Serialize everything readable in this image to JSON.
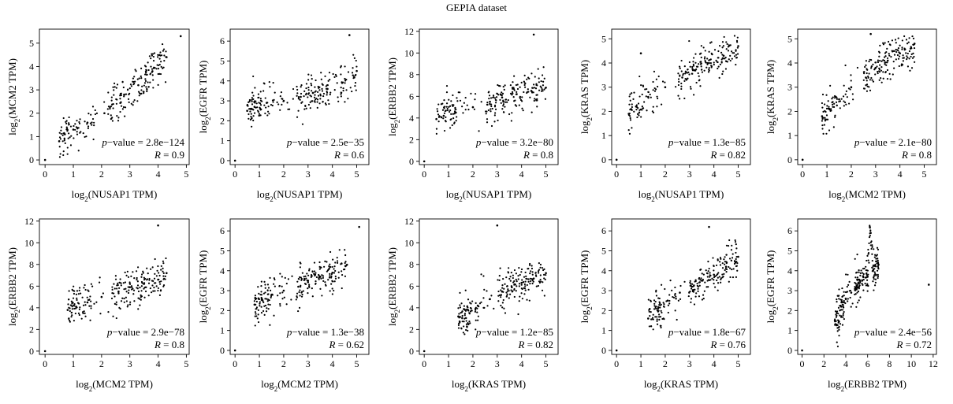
{
  "figure": {
    "title": "GEPIA dataset"
  },
  "chart_data": [
    {
      "type": "scatter",
      "x_var": "NUSAP1",
      "y_var": "MCM2",
      "xlabel": "log2(NUSAP1 TPM)",
      "ylabel": "log2(MCM2 TPM)",
      "xlim": [
        -0.2,
        5.1
      ],
      "ylim": [
        -0.2,
        5.6
      ],
      "xticks": [
        0,
        1,
        2,
        3,
        4,
        5
      ],
      "yticks": [
        0,
        1,
        2,
        3,
        4,
        5
      ],
      "p_value": "2.8e−124",
      "r": "0.9",
      "points": [
        [
          0.0,
          0.0
        ],
        [
          0.5,
          0.8
        ],
        [
          0.7,
          1.1
        ],
        [
          1.0,
          1.3
        ],
        [
          1.5,
          1.6
        ],
        [
          2.1,
          2.0
        ],
        [
          2.8,
          2.8
        ],
        [
          3.3,
          3.2
        ],
        [
          3.8,
          3.8
        ],
        [
          4.3,
          4.4
        ],
        [
          4.8,
          5.3
        ]
      ]
    },
    {
      "type": "scatter",
      "x_var": "NUSAP1",
      "y_var": "EGFR",
      "xlabel": "log2(NUSAP1 TPM)",
      "ylabel": "log2(EGFR TPM)",
      "xlim": [
        -0.2,
        5.5
      ],
      "ylim": [
        -0.2,
        6.6
      ],
      "xticks": [
        0,
        1,
        2,
        3,
        4,
        5
      ],
      "yticks": [
        0,
        1,
        2,
        3,
        4,
        5,
        6
      ],
      "p_value": "2.5e−35",
      "r": "0.6",
      "points": [
        [
          0.0,
          0.0
        ],
        [
          0.5,
          2.5
        ],
        [
          0.8,
          2.7
        ],
        [
          1.3,
          2.9
        ],
        [
          2.0,
          3.0
        ],
        [
          2.7,
          3.2
        ],
        [
          3.2,
          3.4
        ],
        [
          3.8,
          3.6
        ],
        [
          4.4,
          3.9
        ],
        [
          5.0,
          4.5
        ],
        [
          4.7,
          6.3
        ]
      ]
    },
    {
      "type": "scatter",
      "x_var": "NUSAP1",
      "y_var": "ERBB2",
      "xlabel": "log2(NUSAP1 TPM)",
      "ylabel": "log2(ERBB2 TPM)",
      "xlim": [
        -0.2,
        5.5
      ],
      "ylim": [
        -0.3,
        12.2
      ],
      "xticks": [
        0,
        1,
        2,
        3,
        4,
        5
      ],
      "yticks": [
        0,
        2,
        4,
        6,
        8,
        10,
        12
      ],
      "p_value": "3.2e−80",
      "r": "0.8",
      "points": [
        [
          0.0,
          0.0
        ],
        [
          0.5,
          3.9
        ],
        [
          0.8,
          4.2
        ],
        [
          1.3,
          4.5
        ],
        [
          2.0,
          5.0
        ],
        [
          2.7,
          5.5
        ],
        [
          3.2,
          5.9
        ],
        [
          3.8,
          6.2
        ],
        [
          4.4,
          6.5
        ],
        [
          5.0,
          6.8
        ],
        [
          4.5,
          11.7
        ]
      ]
    },
    {
      "type": "scatter",
      "x_var": "NUSAP1",
      "y_var": "KRAS",
      "xlabel": "log2(NUSAP1 TPM)",
      "ylabel": "log2(KRAS TPM)",
      "xlim": [
        -0.2,
        5.5
      ],
      "ylim": [
        -0.2,
        5.4
      ],
      "xticks": [
        0,
        1,
        2,
        3,
        4,
        5
      ],
      "yticks": [
        0,
        1,
        2,
        3,
        4,
        5
      ],
      "p_value": "1.3e−85",
      "r": "0.82",
      "points": [
        [
          0.0,
          0.0
        ],
        [
          0.5,
          1.9
        ],
        [
          0.8,
          2.2
        ],
        [
          1.3,
          2.6
        ],
        [
          2.0,
          3.0
        ],
        [
          2.7,
          3.4
        ],
        [
          3.2,
          3.7
        ],
        [
          3.8,
          4.0
        ],
        [
          4.4,
          4.3
        ],
        [
          5.0,
          4.7
        ],
        [
          1.0,
          4.4
        ]
      ]
    },
    {
      "type": "scatter",
      "x_var": "MCM2",
      "y_var": "KRAS",
      "xlabel": "log2(MCM2 TPM)",
      "ylabel": "log2(KRAS TPM)",
      "xlim": [
        -0.2,
        5.5
      ],
      "ylim": [
        -0.2,
        5.4
      ],
      "xticks": [
        0,
        1,
        2,
        3,
        4,
        5
      ],
      "yticks": [
        0,
        1,
        2,
        3,
        4,
        5
      ],
      "p_value": "2.1e−80",
      "r": "0.8",
      "points": [
        [
          0.0,
          0.0
        ],
        [
          0.8,
          1.8
        ],
        [
          1.1,
          2.1
        ],
        [
          1.5,
          2.5
        ],
        [
          2.0,
          3.0
        ],
        [
          2.6,
          3.4
        ],
        [
          3.0,
          3.8
        ],
        [
          3.5,
          4.1
        ],
        [
          4.0,
          4.4
        ],
        [
          4.6,
          4.8
        ],
        [
          2.8,
          5.2
        ]
      ]
    },
    {
      "type": "scatter",
      "x_var": "MCM2",
      "y_var": "ERBB2",
      "xlabel": "log2(MCM2 TPM)",
      "ylabel": "log2(ERBB2 TPM)",
      "xlim": [
        -0.2,
        5.1
      ],
      "ylim": [
        -0.3,
        12.2
      ],
      "xticks": [
        0,
        1,
        2,
        3,
        4,
        5
      ],
      "yticks": [
        0,
        2,
        4,
        6,
        8,
        10,
        12
      ],
      "p_value": "2.9e−78",
      "r": "0.8",
      "points": [
        [
          0.0,
          0.0
        ],
        [
          0.8,
          3.8
        ],
        [
          1.1,
          4.1
        ],
        [
          1.5,
          4.5
        ],
        [
          2.0,
          5.0
        ],
        [
          2.6,
          5.5
        ],
        [
          3.0,
          5.9
        ],
        [
          3.5,
          6.2
        ],
        [
          4.0,
          6.6
        ],
        [
          4.3,
          7.2
        ],
        [
          4.0,
          11.6
        ]
      ]
    },
    {
      "type": "scatter",
      "x_var": "MCM2",
      "y_var": "EGFR",
      "xlabel": "log2(MCM2 TPM)",
      "ylabel": "log2(EGFR TPM)",
      "xlim": [
        -0.2,
        5.5
      ],
      "ylim": [
        -0.2,
        6.6
      ],
      "xticks": [
        0,
        1,
        2,
        3,
        4,
        5
      ],
      "yticks": [
        0,
        1,
        2,
        3,
        4,
        5,
        6
      ],
      "p_value": "1.3e−38",
      "r": "0.62",
      "points": [
        [
          0.0,
          0.0
        ],
        [
          0.8,
          2.3
        ],
        [
          1.1,
          2.6
        ],
        [
          1.5,
          2.8
        ],
        [
          2.0,
          3.0
        ],
        [
          2.6,
          3.2
        ],
        [
          3.0,
          3.5
        ],
        [
          3.5,
          3.7
        ],
        [
          4.0,
          3.9
        ],
        [
          4.6,
          4.3
        ],
        [
          5.1,
          6.2
        ]
      ]
    },
    {
      "type": "scatter",
      "x_var": "KRAS",
      "y_var": "ERBB2",
      "xlabel": "log2(KRAS TPM)",
      "ylabel": "log2(ERBB2 TPM)",
      "xlim": [
        -0.2,
        5.5
      ],
      "ylim": [
        -0.3,
        12.2
      ],
      "xticks": [
        0,
        1,
        2,
        3,
        4,
        5
      ],
      "yticks": [
        0,
        2,
        4,
        6,
        8,
        10,
        12
      ],
      "p_value": "1.2e−85",
      "r": "0.82",
      "points": [
        [
          0.0,
          0.0
        ],
        [
          1.4,
          3.2
        ],
        [
          1.8,
          3.8
        ],
        [
          2.2,
          4.2
        ],
        [
          2.7,
          4.8
        ],
        [
          3.2,
          5.5
        ],
        [
          3.6,
          5.9
        ],
        [
          4.0,
          6.3
        ],
        [
          4.5,
          6.7
        ],
        [
          5.0,
          7.2
        ],
        [
          3.0,
          11.6
        ]
      ]
    },
    {
      "type": "scatter",
      "x_var": "KRAS",
      "y_var": "EGFR",
      "xlabel": "log2(KRAS TPM)",
      "ylabel": "log2(EGFR TPM)",
      "xlim": [
        -0.2,
        5.5
      ],
      "ylim": [
        -0.2,
        6.6
      ],
      "xticks": [
        0,
        1,
        2,
        3,
        4,
        5
      ],
      "yticks": [
        0,
        1,
        2,
        3,
        4,
        5,
        6
      ],
      "p_value": "1.8e−67",
      "r": "0.76",
      "points": [
        [
          0.0,
          0.0
        ],
        [
          1.3,
          1.6
        ],
        [
          1.7,
          2.1
        ],
        [
          2.1,
          2.5
        ],
        [
          2.6,
          2.9
        ],
        [
          3.1,
          3.2
        ],
        [
          3.5,
          3.5
        ],
        [
          4.0,
          3.8
        ],
        [
          4.5,
          4.2
        ],
        [
          5.0,
          4.7
        ],
        [
          3.8,
          6.2
        ]
      ]
    },
    {
      "type": "scatter",
      "x_var": "ERBB2",
      "y_var": "EGFR",
      "xlabel": "log2(ERBB2 TPM)",
      "ylabel": "log2(EGFR TPM)",
      "xlim": [
        -0.4,
        12.3
      ],
      "ylim": [
        -0.2,
        6.6
      ],
      "xticks": [
        0,
        2,
        4,
        6,
        8,
        10,
        12
      ],
      "yticks": [
        0,
        1,
        2,
        3,
        4,
        5,
        6
      ],
      "p_value": "2.4e−56",
      "r": "0.72",
      "points": [
        [
          0.0,
          0.0
        ],
        [
          3.0,
          1.5
        ],
        [
          3.6,
          2.2
        ],
        [
          4.0,
          2.6
        ],
        [
          4.5,
          2.9
        ],
        [
          5.0,
          3.2
        ],
        [
          5.5,
          3.5
        ],
        [
          6.0,
          3.7
        ],
        [
          6.5,
          4.0
        ],
        [
          7.0,
          4.3
        ],
        [
          6.2,
          6.2
        ],
        [
          11.6,
          3.3
        ]
      ]
    }
  ]
}
